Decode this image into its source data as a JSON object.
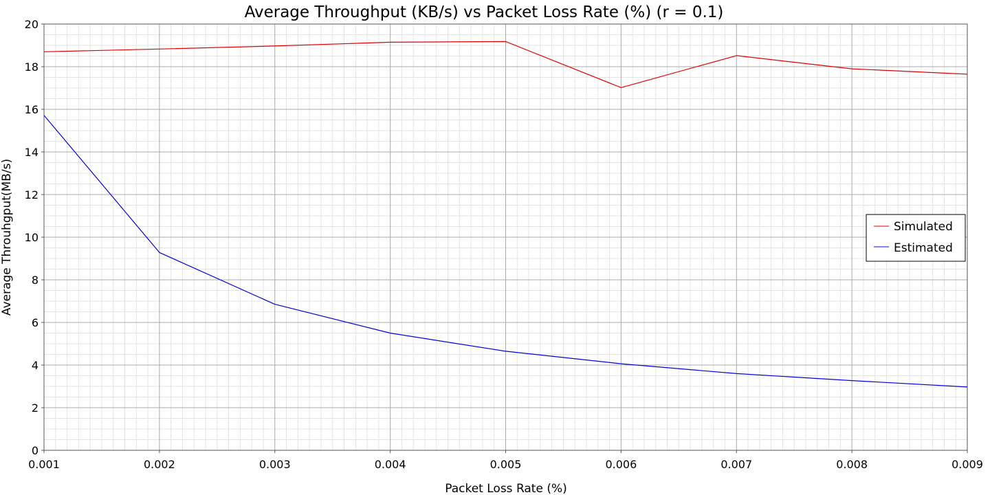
{
  "chart_data": {
    "type": "line",
    "title": "Average Throughput (KB/s) vs Packet Loss Rate (%) (r = 0.1)",
    "xlabel": "Packet Loss Rate (%)",
    "ylabel": "Average Throuhgput(MB/s)",
    "x": [
      0.001,
      0.002,
      0.003,
      0.004,
      0.005,
      0.006,
      0.007,
      0.008,
      0.009
    ],
    "x_tick_labels": [
      "0.001",
      "0.002",
      "0.003",
      "0.004",
      "0.005",
      "0.006",
      "0.007",
      "0.008",
      "0.009"
    ],
    "y_tick_labels": [
      "0",
      "2",
      "4",
      "6",
      "8",
      "10",
      "12",
      "14",
      "16",
      "18",
      "20"
    ],
    "xlim": [
      0.001,
      0.009
    ],
    "ylim": [
      0,
      20
    ],
    "grid": true,
    "legend_position": "right",
    "series": [
      {
        "name": "Simulated",
        "color": "#e00000",
        "values": [
          18.7,
          18.83,
          18.97,
          19.15,
          19.18,
          17.02,
          18.52,
          17.9,
          17.65
        ]
      },
      {
        "name": "Estimated",
        "color": "#0000dd",
        "values": [
          15.72,
          9.28,
          6.85,
          5.5,
          4.65,
          4.06,
          3.6,
          3.27,
          2.97
        ]
      }
    ]
  }
}
